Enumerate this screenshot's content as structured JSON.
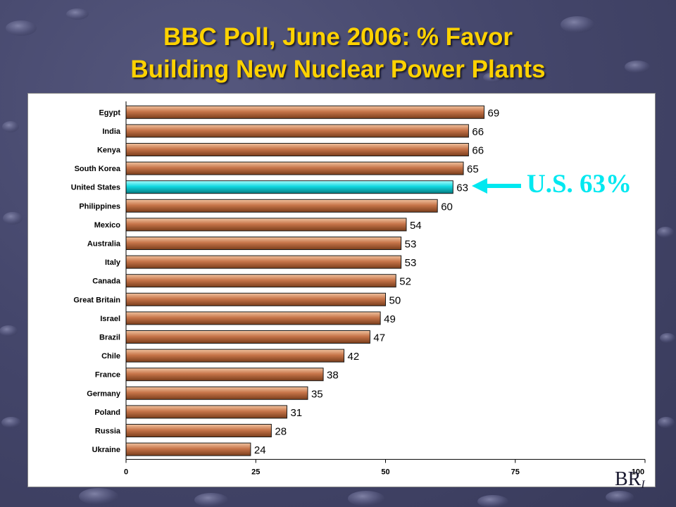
{
  "title": {
    "line1": "BBC Poll, June 2006: % Favor",
    "line2": "Building New Nuclear Power Plants"
  },
  "callout": {
    "text": "U.S. 63%"
  },
  "corner_mark": {
    "text": "BR",
    "sub": "I"
  },
  "colors": {
    "title": "#ffd200",
    "bar": "#c7754a",
    "highlight_bar": "#10d8e0",
    "callout": "#00e8f0"
  },
  "chart_data": {
    "type": "bar",
    "orientation": "horizontal",
    "categories": [
      "Egypt",
      "India",
      "Kenya",
      "South Korea",
      "United States",
      "Philippines",
      "Mexico",
      "Australia",
      "Italy",
      "Canada",
      "Great Britain",
      "Israel",
      "Brazil",
      "Chile",
      "France",
      "Germany",
      "Poland",
      "Russia",
      "Ukraine"
    ],
    "values": [
      69,
      66,
      66,
      65,
      63,
      60,
      54,
      53,
      53,
      52,
      50,
      49,
      47,
      42,
      38,
      35,
      31,
      28,
      24
    ],
    "data_labels": [
      "69",
      "66",
      "66",
      "65",
      "63",
      "60",
      "54",
      "53",
      "53",
      "52",
      "50",
      "49",
      "47",
      "42",
      "38",
      "35",
      "31",
      "28",
      "24"
    ],
    "highlight": "United States",
    "xlim": [
      0,
      100
    ],
    "x_ticks": [
      "0",
      "25",
      "50",
      "75",
      "100"
    ],
    "title": "BBC Poll, June 2006: % Favor Building New Nuclear Power Plants",
    "legend": "none",
    "grid": false
  }
}
